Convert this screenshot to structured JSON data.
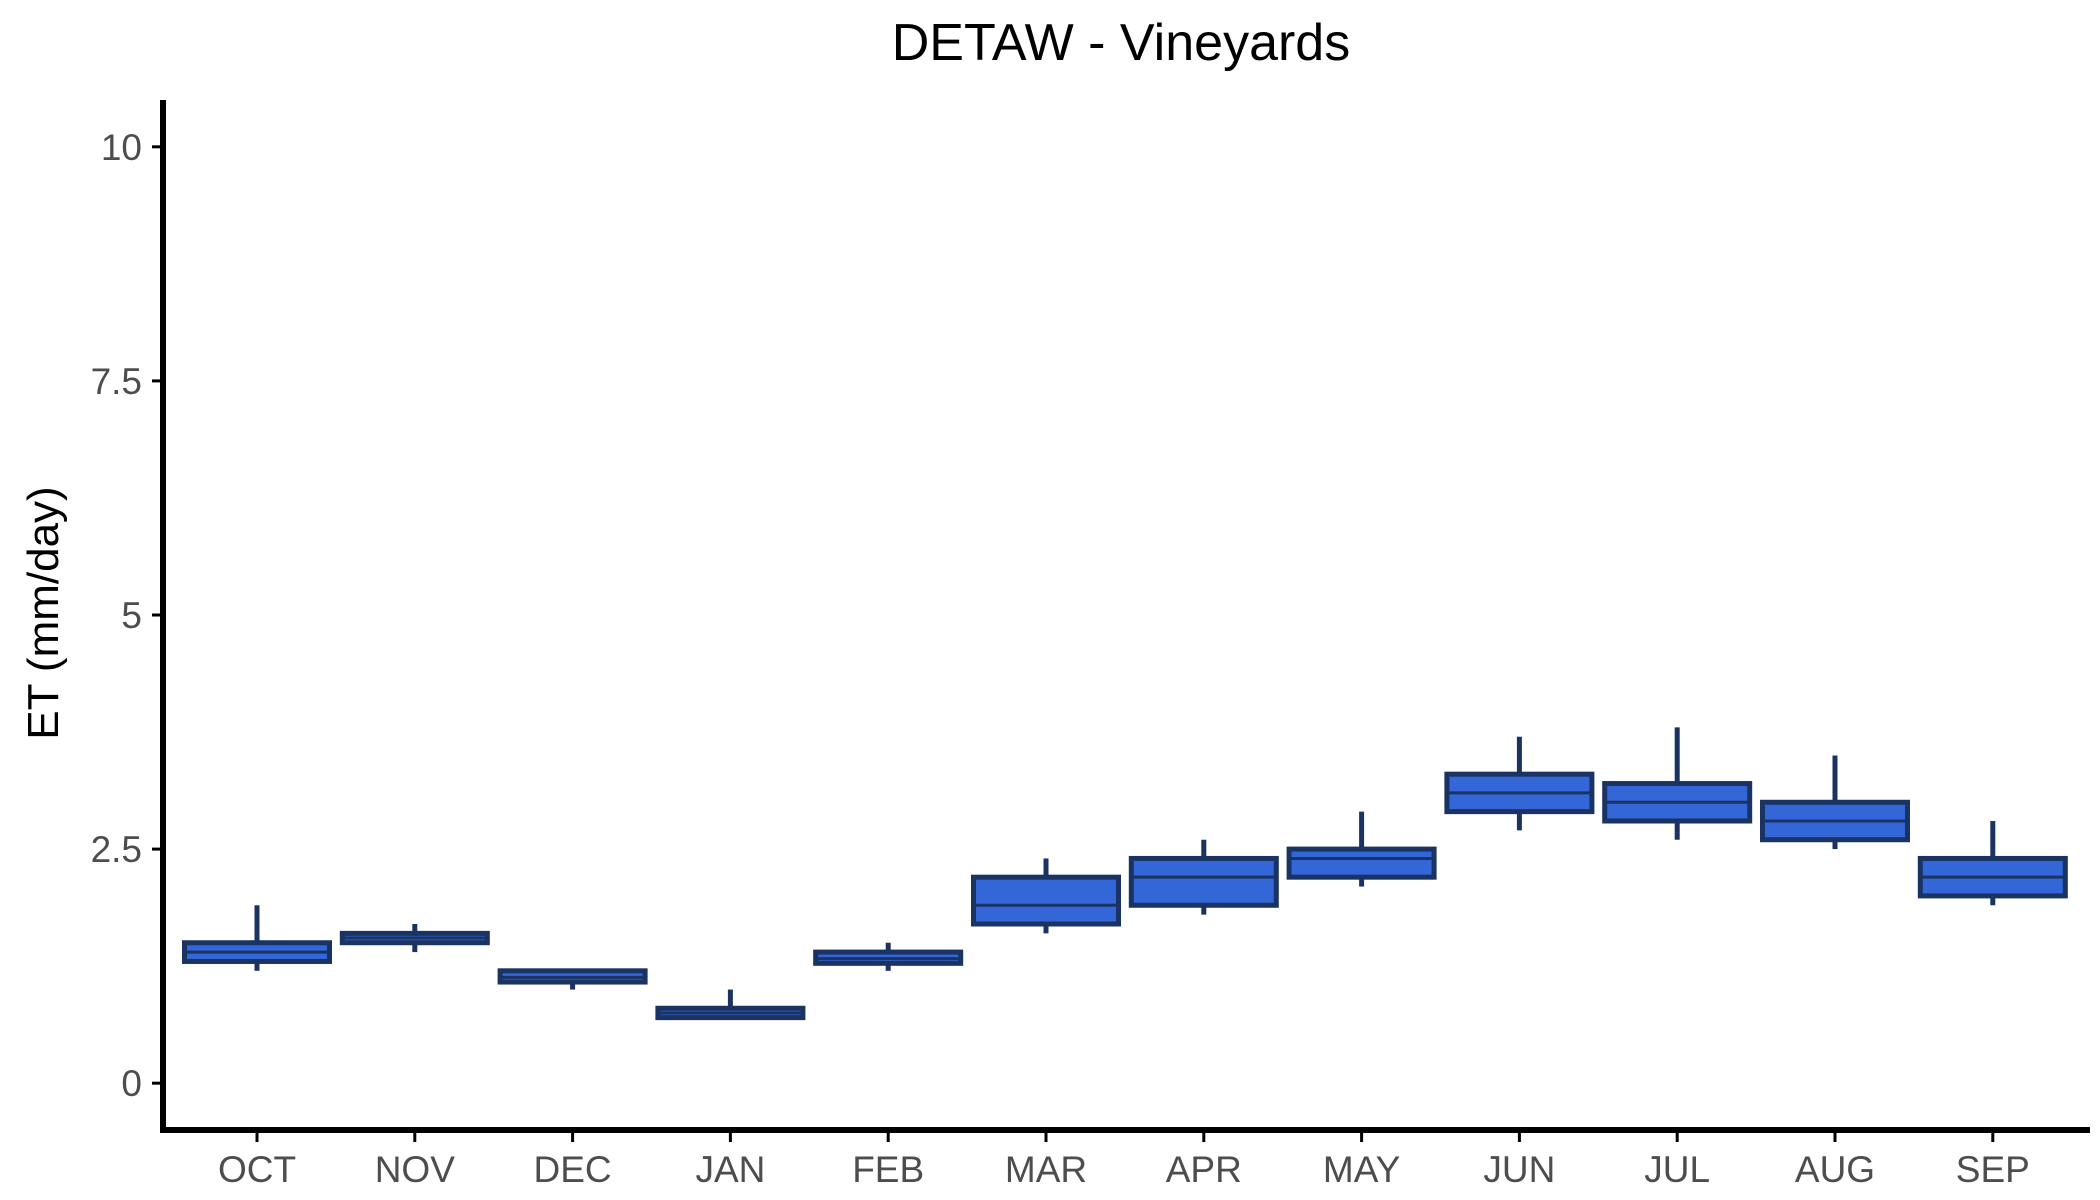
{
  "chart_data": {
    "type": "boxplot",
    "title": "DETAW - Vineyards",
    "xlabel": "",
    "ylabel": "ET (mm/day)",
    "ylim": [
      -0.5,
      10.5
    ],
    "yticks": [
      0,
      2.5,
      5,
      7.5,
      10
    ],
    "ytick_labels": [
      "0",
      "2.5",
      "5",
      "7.5",
      "10"
    ],
    "grid": false,
    "legend": "none",
    "colors": {
      "box_fill": "#3366d6",
      "box_stroke": "#1a3363",
      "axis": "#000000"
    },
    "categories": [
      "OCT",
      "NOV",
      "DEC",
      "JAN",
      "FEB",
      "MAR",
      "APR",
      "MAY",
      "JUN",
      "JUL",
      "AUG",
      "SEP"
    ],
    "boxes": [
      {
        "min": 1.2,
        "q1": 1.3,
        "median": 1.4,
        "q3": 1.5,
        "max": 1.9
      },
      {
        "min": 1.4,
        "q1": 1.5,
        "median": 1.55,
        "q3": 1.6,
        "max": 1.7
      },
      {
        "min": 1.0,
        "q1": 1.08,
        "median": 1.13,
        "q3": 1.2,
        "max": 1.2
      },
      {
        "min": 0.7,
        "q1": 0.7,
        "median": 0.75,
        "q3": 0.8,
        "max": 1.0
      },
      {
        "min": 1.2,
        "q1": 1.28,
        "median": 1.33,
        "q3": 1.4,
        "max": 1.5
      },
      {
        "min": 1.6,
        "q1": 1.7,
        "median": 1.9,
        "q3": 2.2,
        "max": 2.4
      },
      {
        "min": 1.8,
        "q1": 1.9,
        "median": 2.2,
        "q3": 2.4,
        "max": 2.6
      },
      {
        "min": 2.1,
        "q1": 2.2,
        "median": 2.4,
        "q3": 2.5,
        "max": 2.9
      },
      {
        "min": 2.7,
        "q1": 2.9,
        "median": 3.1,
        "q3": 3.3,
        "max": 3.7
      },
      {
        "min": 2.6,
        "q1": 2.8,
        "median": 3.0,
        "q3": 3.2,
        "max": 3.8
      },
      {
        "min": 2.5,
        "q1": 2.6,
        "median": 2.8,
        "q3": 3.0,
        "max": 3.5
      },
      {
        "min": 1.9,
        "q1": 2.0,
        "median": 2.2,
        "q3": 2.4,
        "max": 2.8
      }
    ]
  }
}
